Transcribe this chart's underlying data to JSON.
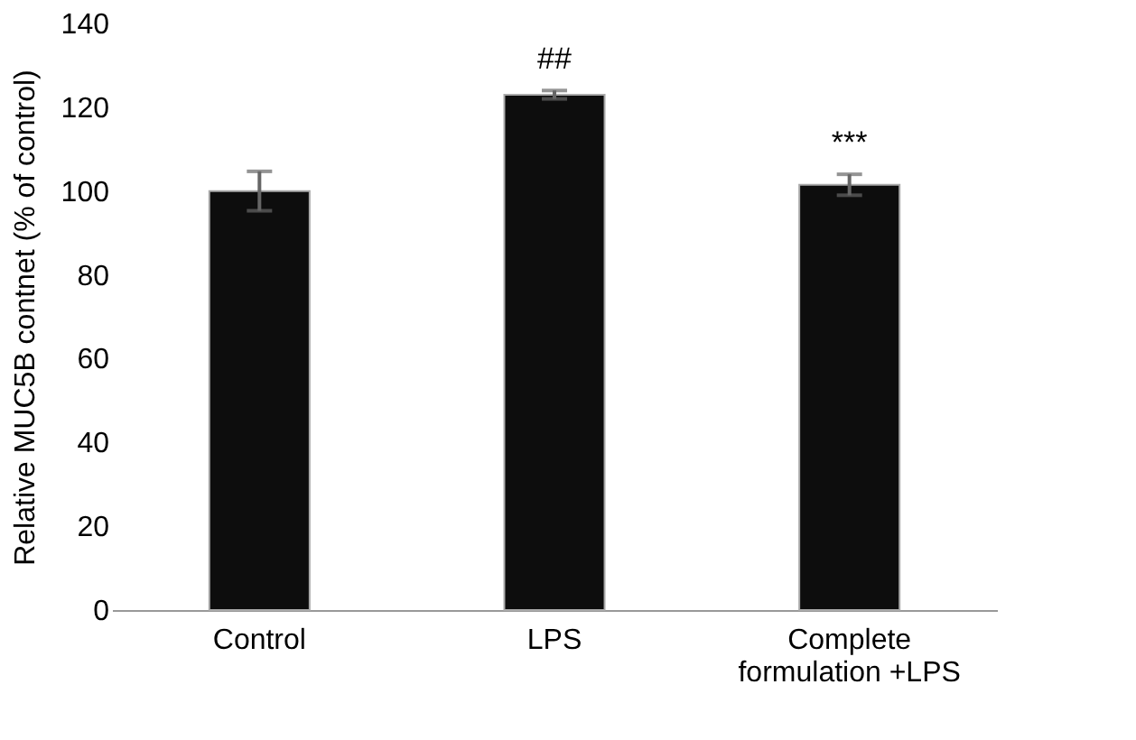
{
  "chart_data": {
    "type": "bar",
    "ylabel": "Relative MUC5B contnet (% of control)",
    "categories": [
      "Control",
      "LPS",
      "Complete formulation +LPS"
    ],
    "values": [
      100,
      123,
      101.5
    ],
    "errors": [
      4.7,
      1,
      2.5
    ],
    "color": "#0d0d0d",
    "ylim": [
      0,
      140
    ],
    "yticks": [
      0,
      20,
      40,
      60,
      80,
      100,
      120,
      140
    ],
    "grid": false,
    "annotations": [
      "##",
      "***"
    ]
  }
}
